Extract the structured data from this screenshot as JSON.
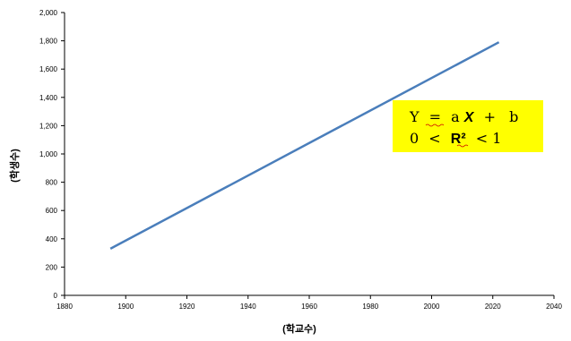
{
  "chart_data": {
    "type": "line",
    "xlabel": "(학교수)",
    "ylabel": "(학생수)",
    "xlim": [
      1880,
      2040
    ],
    "ylim": [
      0,
      2000
    ],
    "x_ticks": [
      "1880",
      "1900",
      "1920",
      "1940",
      "1960",
      "1980",
      "2000",
      "2020",
      "2040"
    ],
    "y_ticks": [
      "0",
      "200",
      "400",
      "600",
      "800",
      "1,000",
      "1,200",
      "1,400",
      "1,600",
      "1,800",
      "2,000"
    ],
    "series": [
      {
        "x": [
          1895,
          2022
        ],
        "y": [
          330,
          1790
        ],
        "color": "#4a7ebb"
      }
    ],
    "annotation": {
      "line1": {
        "y_sym": "Y",
        "eq": "=",
        "a": "a",
        "x_sym": "X",
        "plus": "+",
        "b": "b"
      },
      "line2": {
        "zero": "0",
        "lt1": "<",
        "r2": "R²",
        "lt2": "<",
        "one": "1"
      },
      "background": "#ffff00"
    }
  }
}
